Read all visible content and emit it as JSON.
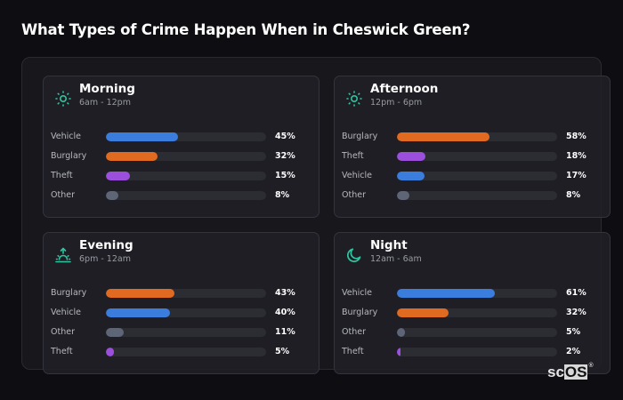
{
  "page": {
    "title": "What Types of Crime Happen When in Cheswick Green?"
  },
  "colors": {
    "page_bg": "#0e0e12",
    "panel_bg": "#17171c",
    "card_bg": "#202026",
    "track": "#2c2c33",
    "icon_accent": "#2ec4a0",
    "Vehicle": "#3b7ddd",
    "Burglary": "#e06a1f",
    "Theft": "#9b4fdc",
    "Other": "#5d6577"
  },
  "cards": [
    {
      "title": "Morning",
      "subtitle": "6am - 12pm",
      "icon": "sun-icon",
      "rows": [
        {
          "label": "Vehicle",
          "value": 45,
          "display": "45%"
        },
        {
          "label": "Burglary",
          "value": 32,
          "display": "32%"
        },
        {
          "label": "Theft",
          "value": 15,
          "display": "15%"
        },
        {
          "label": "Other",
          "value": 8,
          "display": "8%"
        }
      ]
    },
    {
      "title": "Afternoon",
      "subtitle": "12pm - 6pm",
      "icon": "sun-icon",
      "rows": [
        {
          "label": "Burglary",
          "value": 58,
          "display": "58%"
        },
        {
          "label": "Theft",
          "value": 18,
          "display": "18%"
        },
        {
          "label": "Vehicle",
          "value": 17,
          "display": "17%"
        },
        {
          "label": "Other",
          "value": 8,
          "display": "8%"
        }
      ]
    },
    {
      "title": "Evening",
      "subtitle": "6pm - 12am",
      "icon": "sunset-icon",
      "rows": [
        {
          "label": "Burglary",
          "value": 43,
          "display": "43%"
        },
        {
          "label": "Vehicle",
          "value": 40,
          "display": "40%"
        },
        {
          "label": "Other",
          "value": 11,
          "display": "11%"
        },
        {
          "label": "Theft",
          "value": 5,
          "display": "5%"
        }
      ]
    },
    {
      "title": "Night",
      "subtitle": "12am - 6am",
      "icon": "moon-icon",
      "rows": [
        {
          "label": "Vehicle",
          "value": 61,
          "display": "61%"
        },
        {
          "label": "Burglary",
          "value": 32,
          "display": "32%"
        },
        {
          "label": "Other",
          "value": 5,
          "display": "5%"
        },
        {
          "label": "Theft",
          "value": 2,
          "display": "2%"
        }
      ]
    }
  ],
  "watermark": {
    "sc": "sc",
    "os": "OS",
    "reg": "®"
  },
  "chart_data": {
    "type": "bar",
    "orientation": "horizontal",
    "title": "What Types of Crime Happen When in Cheswick Green?",
    "xlabel": "",
    "ylabel": "",
    "xlim": [
      0,
      100
    ],
    "unit": "%",
    "grid": false,
    "legend": null,
    "panels": [
      {
        "title": "Morning",
        "subtitle": "6am - 12pm",
        "categories": [
          "Vehicle",
          "Burglary",
          "Theft",
          "Other"
        ],
        "values": [
          45,
          32,
          15,
          8
        ]
      },
      {
        "title": "Afternoon",
        "subtitle": "12pm - 6pm",
        "categories": [
          "Burglary",
          "Theft",
          "Vehicle",
          "Other"
        ],
        "values": [
          58,
          18,
          17,
          8
        ]
      },
      {
        "title": "Evening",
        "subtitle": "6pm - 12am",
        "categories": [
          "Burglary",
          "Vehicle",
          "Other",
          "Theft"
        ],
        "values": [
          43,
          40,
          11,
          5
        ]
      },
      {
        "title": "Night",
        "subtitle": "12am - 6am",
        "categories": [
          "Vehicle",
          "Burglary",
          "Other",
          "Theft"
        ],
        "values": [
          61,
          32,
          5,
          2
        ]
      }
    ],
    "series_colors": {
      "Vehicle": "#3b7ddd",
      "Burglary": "#e06a1f",
      "Theft": "#9b4fdc",
      "Other": "#5d6577"
    }
  }
}
